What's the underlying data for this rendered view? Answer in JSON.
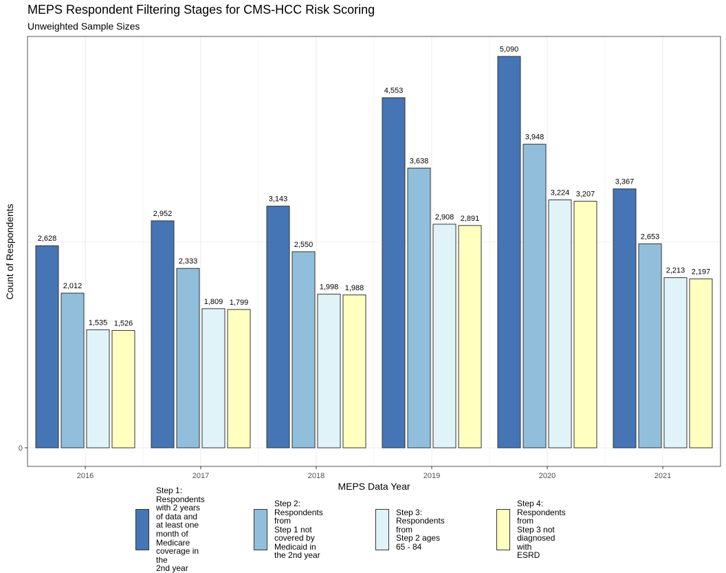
{
  "chart_data": {
    "type": "bar",
    "title": "MEPS Respondent Filtering Stages for CMS-HCC Risk Scoring",
    "subtitle": "Unweighted Sample Sizes",
    "xlabel": "MEPS Data Year",
    "ylabel": "Count of Respondents",
    "categories": [
      "2016",
      "2017",
      "2018",
      "2019",
      "2020",
      "2021"
    ],
    "y_ticks": [
      {
        "value": 0,
        "label": "0"
      }
    ],
    "ylim": [
      -240,
      5350
    ],
    "grid": true,
    "legend_position": "bottom",
    "series": [
      {
        "name": "Step 1: Respondents with 2 years of data and at least one month of Medicare coverage in the 2nd year",
        "name_lines": [
          "Step 1: Respondents",
          "with 2 years of data and",
          "at least one month of",
          "Medicare coverage in the",
          "2nd year"
        ],
        "color": "#4575b4",
        "values": [
          2628,
          2952,
          3143,
          4553,
          5090,
          3367
        ],
        "labels": [
          "2,628",
          "2,952",
          "3,143",
          "4,553",
          "5,090",
          "3,367"
        ]
      },
      {
        "name": "Step 2: Respondents from Step 1 not covered by Medicaid in the 2nd year",
        "name_lines": [
          "Step 2: Respondents from",
          "Step 1 not covered by",
          "Medicaid in the 2nd year"
        ],
        "color": "#91bfdb",
        "values": [
          2012,
          2333,
          2550,
          3638,
          3948,
          2653
        ],
        "labels": [
          "2,012",
          "2,333",
          "2,550",
          "3,638",
          "3,948",
          "2,653"
        ]
      },
      {
        "name": "Step 3: Respondents from Step 2 ages 65 - 84",
        "name_lines": [
          "Step 3: Respondents from",
          "Step 2 ages 65 - 84"
        ],
        "color": "#e0f3f8",
        "values": [
          1535,
          1809,
          1998,
          2908,
          3224,
          2213
        ],
        "labels": [
          "1,535",
          "1,809",
          "1,998",
          "2,908",
          "3,224",
          "2,213"
        ]
      },
      {
        "name": "Step 4: Respondents from Step 3 not diagnosed with ESRD",
        "name_lines": [
          "Step 4: Respondents from",
          "Step 3 not diagnosed with",
          "ESRD"
        ],
        "color": "#ffffbf",
        "values": [
          1526,
          1799,
          1988,
          2891,
          3207,
          2197
        ],
        "labels": [
          "1,526",
          "1,799",
          "1,988",
          "2,891",
          "3,207",
          "2,197"
        ]
      }
    ]
  }
}
